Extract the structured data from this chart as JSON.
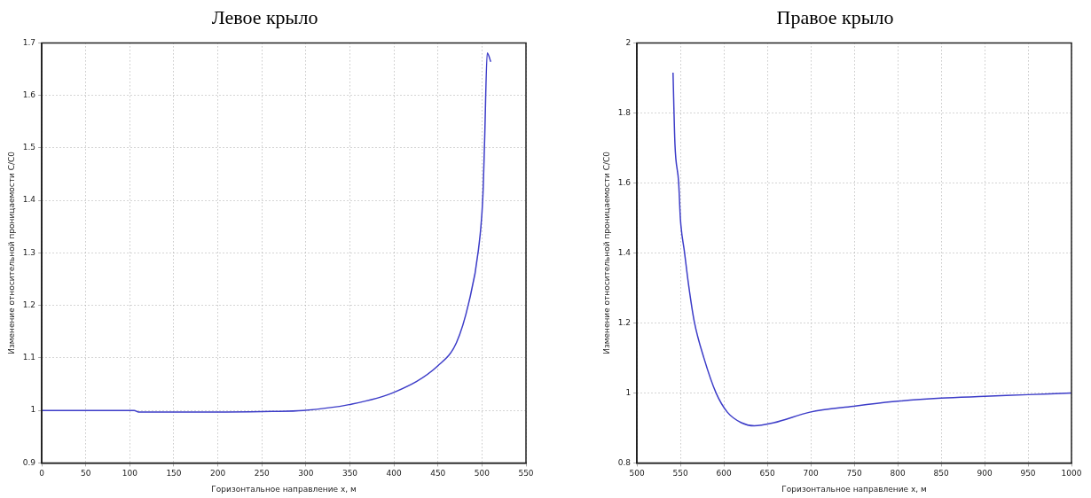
{
  "chart_data": [
    {
      "type": "line",
      "title": "Левое крыло",
      "xlabel": "Горизонтальное направление x, м",
      "ylabel": "Изменение относительной проницаемости C/C0",
      "xlim": [
        0,
        550
      ],
      "xticks": [
        0,
        50,
        100,
        150,
        200,
        250,
        300,
        350,
        400,
        450,
        500,
        550
      ],
      "ylim": [
        0.9,
        1.7
      ],
      "yticks": [
        0.9,
        1,
        1.1,
        1.2,
        1.3,
        1.4,
        1.5,
        1.6,
        1.7
      ],
      "grid": true,
      "legend": false,
      "marker": "none",
      "series": [
        {
          "color": "#3c3cc8",
          "x": [
            0,
            50,
            105,
            110,
            150,
            200,
            262,
            297,
            349,
            401,
            450,
            471,
            485,
            496,
            501,
            503,
            506,
            510
          ],
          "values": [
            1,
            1,
            1,
            0.997,
            0.997,
            0.997,
            0.998,
            1.0,
            1.011,
            1.035,
            1.085,
            1.129,
            1.205,
            1.306,
            1.407,
            1.513,
            1.681,
            1.664
          ]
        }
      ]
    },
    {
      "type": "line",
      "title": "Правое крыло",
      "xlabel": "Горизонтальное направление x, м",
      "ylabel": "Изменение относительной проницаемости C/C0",
      "xlim": [
        500,
        1000
      ],
      "xticks": [
        500,
        550,
        600,
        650,
        700,
        750,
        800,
        850,
        900,
        950,
        1000
      ],
      "ylim": [
        0.8,
        2
      ],
      "yticks": [
        0.8,
        1,
        1.2,
        1.4,
        1.6,
        1.8,
        2
      ],
      "grid": true,
      "legend": false,
      "marker": "none",
      "series": [
        {
          "color": "#3c3cc8",
          "x": [
            541.5,
            543.7,
            548,
            550,
            554.7,
            559.5,
            566,
            577,
            591,
            604,
            620,
            635,
            657.6,
            699,
            749,
            794,
            850,
            900,
            950,
            1000
          ],
          "values": [
            1.915,
            1.712,
            1.6,
            1.497,
            1.402,
            1.307,
            1.203,
            1.1,
            1.0,
            0.945,
            0.915,
            0.906,
            0.915,
            0.945,
            0.962,
            0.975,
            0.985,
            0.99,
            0.995,
            1.0
          ]
        }
      ]
    }
  ]
}
